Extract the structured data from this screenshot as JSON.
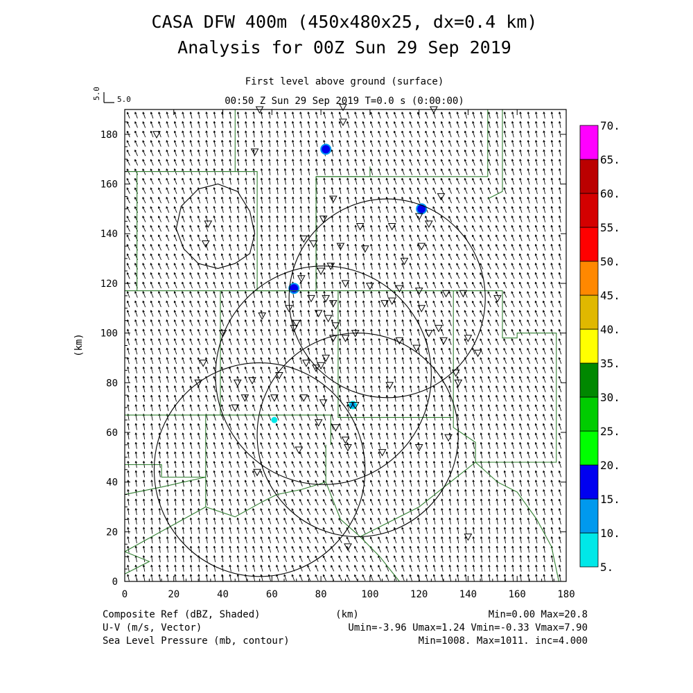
{
  "title_line1": "CASA DFW 400m (450x480x25, dx=0.4 km)",
  "title_line2": "Analysis for 00Z Sun 29 Sep 2019",
  "level_label": "First level above ground (surface)",
  "time_label": "00:50 Z Sun 29 Sep 2019    T=0.0 s (0:00:00)",
  "ref_vector_v": "5.0",
  "ref_vector_u": "5.0",
  "footer": {
    "left1": "Composite Ref (dBZ, Shaded)",
    "left2": "U-V (m/s, Vector)",
    "left3": "Sea Level Pressure (mb, contour)",
    "mid1": "(km)",
    "right1": "Min=0.00 Max=20.8",
    "right2": "Umin=-3.96 Umax=1.24 Vmin=-0.33 Vmax=7.90",
    "right3": "Min=1008. Max=1011. inc=4.000"
  },
  "chart_data": {
    "type": "heatmap",
    "description_fields": [
      "composite reflectivity",
      "wind vectors",
      "sea level pressure contours"
    ],
    "xlabel": "",
    "ylabel": "(km)",
    "xlim": [
      0,
      180
    ],
    "ylim": [
      0,
      190
    ],
    "x_ticks": [
      0,
      20,
      40,
      60,
      80,
      100,
      120,
      140,
      160,
      180
    ],
    "y_ticks": [
      0,
      20,
      40,
      60,
      80,
      100,
      120,
      140,
      160,
      180
    ],
    "colorbar": {
      "levels": [
        "5.",
        "10.",
        "15.",
        "20.",
        "25.",
        "30.",
        "35.",
        "40.",
        "45.",
        "50.",
        "55.",
        "60.",
        "65.",
        "70."
      ],
      "colors": [
        "#00e8e8",
        "#0099ee",
        "#0000f0",
        "#00ff00",
        "#00cc00",
        "#008800",
        "#ffff00",
        "#e0b800",
        "#ff8800",
        "#ff0000",
        "#d40000",
        "#bb0000",
        "#ff00ff"
      ]
    },
    "reflectivity_cells": [
      {
        "x": 82,
        "y": 174,
        "dbz": 15
      },
      {
        "x": 121,
        "y": 150,
        "dbz": 15
      },
      {
        "x": 69,
        "y": 118,
        "dbz": 15
      },
      {
        "x": 93,
        "y": 71,
        "dbz": 10
      },
      {
        "x": 61,
        "y": 65,
        "dbz": 5
      }
    ],
    "wind": {
      "u_mean": -1.3,
      "v_mean": 4.6,
      "min_u": -3.96,
      "max_u": 1.24,
      "min_v": -0.33,
      "max_v": 7.9
    },
    "radar_ranges": [
      {
        "cx": 107,
        "cy": 114,
        "r": 40
      },
      {
        "cx": 81,
        "cy": 83,
        "r": 44
      },
      {
        "cx": 95,
        "cy": 59,
        "r": 41
      },
      {
        "cx": 55,
        "cy": 45,
        "r": 43
      }
    ],
    "pressure_contour": {
      "value": 1008,
      "points": [
        [
          30,
          158
        ],
        [
          38,
          160
        ],
        [
          46,
          157
        ],
        [
          51,
          149
        ],
        [
          53,
          140
        ],
        [
          51,
          132
        ],
        [
          45,
          128
        ],
        [
          38,
          126
        ],
        [
          30,
          128
        ],
        [
          24,
          134
        ],
        [
          21,
          142
        ],
        [
          23,
          151
        ],
        [
          30,
          158
        ]
      ]
    },
    "stations": [
      [
        55,
        190
      ],
      [
        89,
        191
      ],
      [
        126,
        190
      ],
      [
        13,
        180
      ],
      [
        89,
        185
      ],
      [
        53,
        173
      ],
      [
        85,
        154
      ],
      [
        129,
        155
      ],
      [
        34,
        144
      ],
      [
        81,
        146
      ],
      [
        120,
        147
      ],
      [
        124,
        144
      ],
      [
        109,
        143
      ],
      [
        96,
        143
      ],
      [
        73,
        138
      ],
      [
        33,
        136
      ],
      [
        77,
        136
      ],
      [
        88,
        135
      ],
      [
        98,
        134
      ],
      [
        121,
        135
      ],
      [
        114,
        129
      ],
      [
        84,
        127
      ],
      [
        80,
        125
      ],
      [
        72,
        122
      ],
      [
        90,
        120
      ],
      [
        100,
        119
      ],
      [
        112,
        118
      ],
      [
        120,
        117
      ],
      [
        131,
        116
      ],
      [
        138,
        116
      ],
      [
        152,
        114
      ],
      [
        109,
        113
      ],
      [
        76,
        114
      ],
      [
        82,
        114
      ],
      [
        85,
        112
      ],
      [
        121,
        110
      ],
      [
        106,
        112
      ],
      [
        67,
        110
      ],
      [
        79,
        108
      ],
      [
        83,
        106
      ],
      [
        86,
        103
      ],
      [
        70,
        104
      ],
      [
        56,
        107
      ],
      [
        69,
        102
      ],
      [
        124,
        100
      ],
      [
        128,
        102
      ],
      [
        85,
        98
      ],
      [
        40,
        100
      ],
      [
        90,
        98
      ],
      [
        94,
        100
      ],
      [
        112,
        97
      ],
      [
        140,
        98
      ],
      [
        130,
        97
      ],
      [
        144,
        92
      ],
      [
        119,
        94
      ],
      [
        82,
        90
      ],
      [
        32,
        88
      ],
      [
        74,
        88
      ],
      [
        80,
        87
      ],
      [
        78,
        86
      ],
      [
        63,
        83
      ],
      [
        135,
        84
      ],
      [
        46,
        80
      ],
      [
        52,
        81
      ],
      [
        30,
        80
      ],
      [
        136,
        80
      ],
      [
        108,
        79
      ],
      [
        73,
        74
      ],
      [
        92,
        71
      ],
      [
        81,
        72
      ],
      [
        94,
        71
      ],
      [
        61,
        74
      ],
      [
        49,
        74
      ],
      [
        45,
        70
      ],
      [
        79,
        64
      ],
      [
        86,
        62
      ],
      [
        132,
        58
      ],
      [
        90,
        57
      ],
      [
        91,
        54
      ],
      [
        120,
        54
      ],
      [
        71,
        53
      ],
      [
        105,
        52
      ],
      [
        54,
        44
      ],
      [
        140,
        18
      ],
      [
        91,
        14
      ]
    ]
  }
}
